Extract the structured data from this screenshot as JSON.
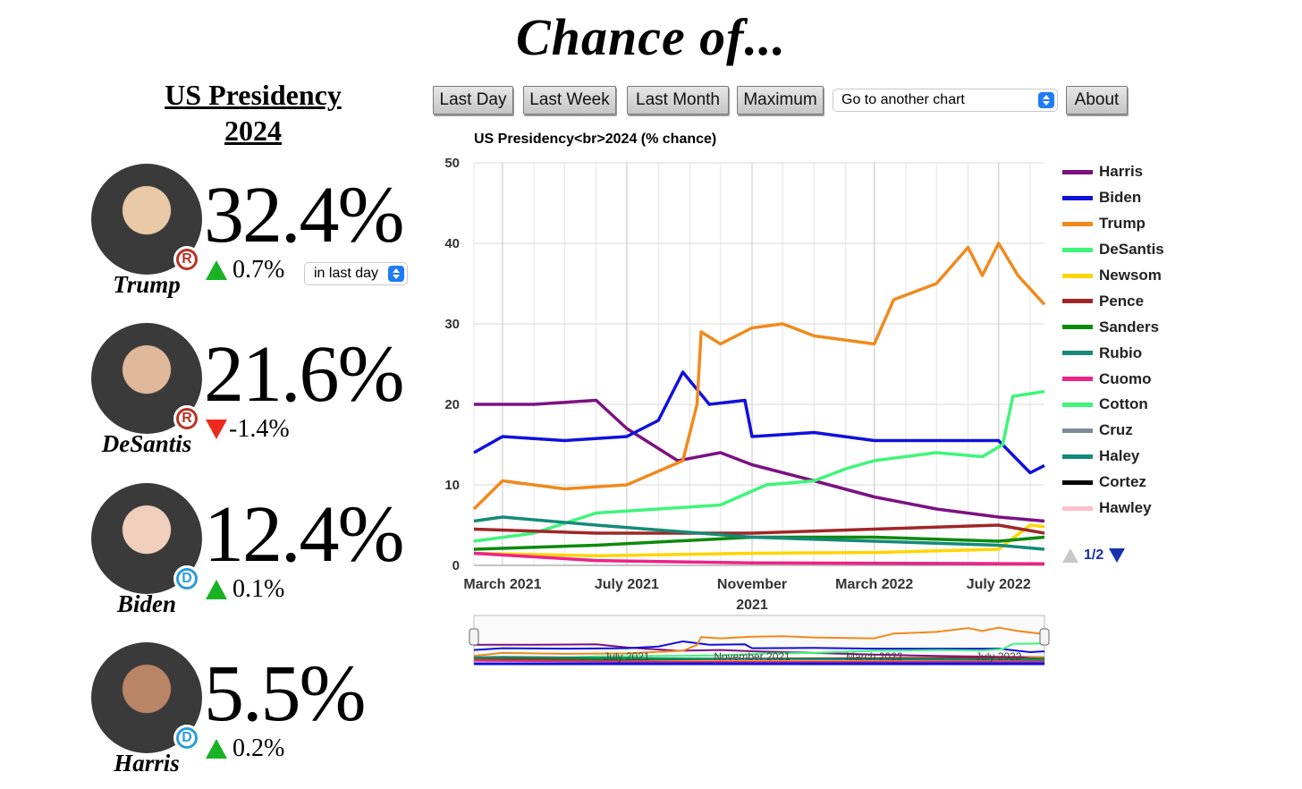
{
  "page": {
    "title": "Chance of..."
  },
  "market": {
    "title_line1": "US Presidency",
    "title_line2": "2024"
  },
  "nav": {
    "buttons": [
      "Last Day",
      "Last Week",
      "Last Month",
      "Maximum"
    ],
    "chart_select_value": "Go to another chart",
    "about_label": "About"
  },
  "candidates": [
    {
      "name": "Trump",
      "party": "R",
      "percent": "32.4%",
      "change": "0.7%",
      "direction": "up",
      "period": "in last day",
      "avatar_color": "#e9c9a6"
    },
    {
      "name": "DeSantis",
      "party": "R",
      "percent": "21.6%",
      "change": "-1.4%",
      "direction": "down",
      "period": "",
      "avatar_color": "#e0b89a"
    },
    {
      "name": "Biden",
      "party": "D",
      "percent": "12.4%",
      "change": "0.1%",
      "direction": "up",
      "period": "",
      "avatar_color": "#f0d0bc"
    },
    {
      "name": "Harris",
      "party": "D",
      "percent": "5.5%",
      "change": "0.2%",
      "direction": "up",
      "period": "",
      "avatar_color": "#b98566"
    }
  ],
  "colors": {
    "party_R": "#b73426",
    "party_D": "#2d9bd8",
    "up": "#18b224",
    "down": "#ee2a1d"
  },
  "legend_pager": {
    "label": "1/2"
  },
  "chart_data": {
    "type": "line",
    "title": "US Presidency<br>2024 (% chance)",
    "ylim": [
      0,
      50
    ],
    "yticks": [
      "0",
      "10",
      "20",
      "30",
      "40",
      "50"
    ],
    "xlim": [
      "2021-02-01",
      "2022-08-15"
    ],
    "xticks": [
      {
        "date": "2021-03-01",
        "label": [
          "March 2021"
        ]
      },
      {
        "date": "2021-07-01",
        "label": [
          "July 2021"
        ]
      },
      {
        "date": "2021-11-01",
        "label": [
          "November",
          "2021"
        ]
      },
      {
        "date": "2022-03-01",
        "label": [
          "March 2022"
        ]
      },
      {
        "date": "2022-07-01",
        "label": [
          "July 2022"
        ]
      }
    ],
    "navigator_labels": [
      "July 2021",
      "November 2021",
      "March 2022",
      "July 2022"
    ],
    "grid": true,
    "legend_position": "right",
    "series": [
      {
        "name": "Harris",
        "color": "#7b1182",
        "x": [
          "2021-02-01",
          "2021-04-01",
          "2021-06-01",
          "2021-07-01",
          "2021-08-20",
          "2021-10-01",
          "2021-11-01",
          "2022-01-01",
          "2022-03-01",
          "2022-05-01",
          "2022-07-01",
          "2022-08-15"
        ],
        "y": [
          20,
          20,
          20.5,
          17,
          13,
          14,
          12.5,
          10.5,
          8.5,
          7,
          6,
          5.5
        ]
      },
      {
        "name": "Biden",
        "color": "#1010dd",
        "x": [
          "2021-02-01",
          "2021-03-01",
          "2021-05-01",
          "2021-07-01",
          "2021-08-01",
          "2021-08-25",
          "2021-09-20",
          "2021-10-25",
          "2021-11-01",
          "2022-01-01",
          "2022-03-01",
          "2022-05-01",
          "2022-07-01",
          "2022-08-01",
          "2022-08-15"
        ],
        "y": [
          14,
          16,
          15.5,
          16,
          18,
          24,
          20,
          20.5,
          16,
          16.5,
          15.5,
          15.5,
          15.5,
          11.5,
          12.4
        ]
      },
      {
        "name": "Trump",
        "color": "#f08a1c",
        "x": [
          "2021-02-01",
          "2021-03-01",
          "2021-05-01",
          "2021-07-01",
          "2021-08-25",
          "2021-09-08",
          "2021-09-12",
          "2021-10-01",
          "2021-11-01",
          "2021-12-01",
          "2022-01-01",
          "2022-03-01",
          "2022-03-20",
          "2022-05-01",
          "2022-06-01",
          "2022-06-15",
          "2022-07-01",
          "2022-07-20",
          "2022-08-15"
        ],
        "y": [
          7,
          10.5,
          9.5,
          10,
          13,
          20,
          29,
          27.5,
          29.5,
          30,
          28.5,
          27.5,
          33,
          35,
          39.5,
          36,
          40,
          36,
          32.4
        ]
      },
      {
        "name": "DeSantis",
        "color": "#3ef57a",
        "x": [
          "2021-02-01",
          "2021-04-01",
          "2021-06-01",
          "2021-08-01",
          "2021-10-01",
          "2021-11-15",
          "2022-01-01",
          "2022-02-01",
          "2022-03-01",
          "2022-05-01",
          "2022-06-15",
          "2022-07-05",
          "2022-07-15",
          "2022-08-15"
        ],
        "y": [
          3,
          4,
          6.5,
          7,
          7.5,
          10,
          10.5,
          12,
          13,
          14,
          13.5,
          15,
          21,
          21.6
        ]
      },
      {
        "name": "Newsom",
        "color": "#ffd400",
        "x": [
          "2021-02-01",
          "2021-06-01",
          "2021-11-01",
          "2022-03-01",
          "2022-07-01",
          "2022-08-01",
          "2022-08-15"
        ],
        "y": [
          1.5,
          1.2,
          1.5,
          1.6,
          2,
          5,
          4.8
        ]
      },
      {
        "name": "Pence",
        "color": "#a02626",
        "x": [
          "2021-02-01",
          "2021-06-01",
          "2021-11-01",
          "2022-03-01",
          "2022-07-01",
          "2022-08-15"
        ],
        "y": [
          4.5,
          4,
          4,
          4.5,
          5,
          4
        ]
      },
      {
        "name": "Sanders",
        "color": "#0c8a0c",
        "x": [
          "2021-02-01",
          "2021-06-01",
          "2021-11-01",
          "2022-03-01",
          "2022-07-01",
          "2022-08-15"
        ],
        "y": [
          2,
          2.5,
          3.5,
          3.5,
          3,
          3.5
        ]
      },
      {
        "name": "Rubio",
        "color": "#158a7a",
        "x": [
          "2021-02-01",
          "2021-03-01",
          "2021-06-01",
          "2021-11-01",
          "2022-03-01",
          "2022-07-01",
          "2022-08-15"
        ],
        "y": [
          5.5,
          6,
          5,
          3.5,
          3,
          2.5,
          2
        ]
      },
      {
        "name": "Cuomo",
        "color": "#ee2288",
        "x": [
          "2021-02-01",
          "2021-06-01",
          "2021-11-01",
          "2022-08-15"
        ],
        "y": [
          1.5,
          0.6,
          0.3,
          0.2
        ]
      }
    ],
    "legend_series": [
      {
        "name": "Harris",
        "color": "#7b1182"
      },
      {
        "name": "Biden",
        "color": "#1010dd"
      },
      {
        "name": "Trump",
        "color": "#f08a1c"
      },
      {
        "name": "DeSantis",
        "color": "#3ef57a"
      },
      {
        "name": "Newsom",
        "color": "#ffd400"
      },
      {
        "name": "Pence",
        "color": "#a02626"
      },
      {
        "name": "Sanders",
        "color": "#0c8a0c"
      },
      {
        "name": "Rubio",
        "color": "#158a7a"
      },
      {
        "name": "Cuomo",
        "color": "#ee2288"
      },
      {
        "name": "Cotton",
        "color": "#3ef57a"
      },
      {
        "name": "Cruz",
        "color": "#7a8a99"
      },
      {
        "name": "Haley",
        "color": "#158a7a"
      },
      {
        "name": "Cortez",
        "color": "#000000"
      },
      {
        "name": "Hawley",
        "color": "#ffc0cb"
      }
    ]
  }
}
